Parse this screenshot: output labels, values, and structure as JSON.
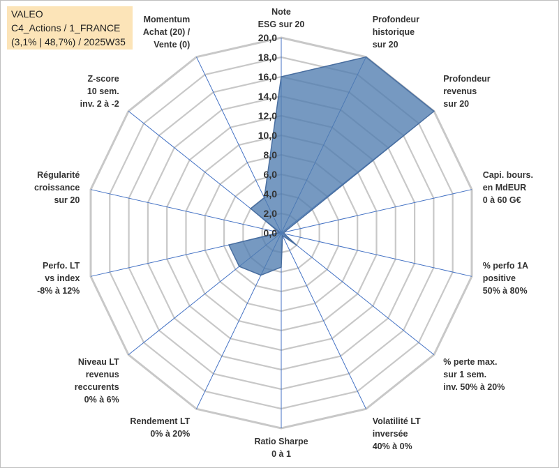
{
  "title": {
    "line1": "VALEO",
    "line2": "C4_Actions / 1_FRANCE",
    "line3": "(3,1% | 48,7%) / 2025W35"
  },
  "chart_data": {
    "type": "radar",
    "rlim": [
      0,
      20
    ],
    "tick_step": 2,
    "tick_labels": [
      "0,0",
      "2,0",
      "4,0",
      "6,0",
      "8,0",
      "10,0",
      "12,0",
      "14,0",
      "16,0",
      "18,0",
      "20,0"
    ],
    "axes": [
      [
        "Note",
        "ESG sur 20"
      ],
      [
        "Profondeur",
        "historique",
        "sur 20"
      ],
      [
        "Profondeur",
        "revenus",
        "sur 20"
      ],
      [
        "Capi. bours.",
        "en MdEUR",
        "0 à 60 G€"
      ],
      [
        "% perfo 1A",
        "positive",
        "50% à 80%"
      ],
      [
        "% perte max.",
        "sur 1 sem.",
        "inv. 50% à 20%"
      ],
      [
        "Volatilité LT",
        "inversée",
        "40% à 0%"
      ],
      [
        "Ratio Sharpe",
        "0 à 1"
      ],
      [
        "Rendement LT",
        "0% à 20%"
      ],
      [
        "Niveau LT",
        "revenus",
        "reccurents",
        "0% à 6%"
      ],
      [
        "Perfo. LT",
        "vs index",
        "-8% à 12%"
      ],
      [
        "Régularité",
        "croissance",
        "sur 20"
      ],
      [
        "Z-score",
        "10 sem.",
        "inv. 2 à -2"
      ],
      [
        "Momentum",
        "Achat (20) /",
        "Vente (0)"
      ]
    ],
    "values": [
      16.0,
      20.0,
      20.0,
      0.3,
      0.3,
      2.0,
      0.3,
      3.5,
      4.8,
      5.5,
      5.5,
      0.2,
      4.0,
      4.0
    ],
    "colors": {
      "fill": "#4f7cb0",
      "stroke": "#4a6fa0",
      "grid": "#c8c8c8",
      "spoke": "#4472c4",
      "title_bg": "#fce4b8"
    }
  }
}
